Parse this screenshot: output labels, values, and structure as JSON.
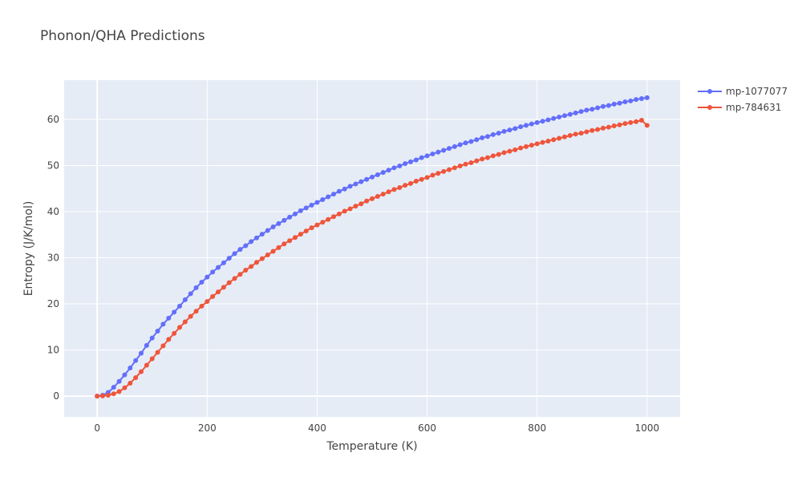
{
  "chart_data": {
    "type": "line",
    "title": "Phonon/QHA Predictions",
    "xlabel": "Temperature (K)",
    "ylabel": "Entropy (J/K/mol)",
    "xlim": [
      -60,
      1060
    ],
    "ylim": [
      -4.5,
      68.5
    ],
    "xticks": [
      0,
      200,
      400,
      600,
      800,
      1000
    ],
    "yticks": [
      0,
      10,
      20,
      30,
      40,
      50,
      60
    ],
    "grid": true,
    "legend_position": "top-right",
    "plot_background": "#E5ECF6",
    "series": [
      {
        "name": "mp-1077077",
        "color": "#636EFA",
        "x": [
          0,
          10,
          20,
          30,
          40,
          50,
          60,
          70,
          80,
          90,
          100,
          110,
          120,
          130,
          140,
          150,
          160,
          170,
          180,
          190,
          200,
          210,
          220,
          230,
          240,
          250,
          260,
          270,
          280,
          290,
          300,
          310,
          320,
          330,
          340,
          350,
          360,
          370,
          380,
          390,
          400,
          410,
          420,
          430,
          440,
          450,
          460,
          470,
          480,
          490,
          500,
          510,
          520,
          530,
          540,
          550,
          560,
          570,
          580,
          590,
          600,
          610,
          620,
          630,
          640,
          650,
          660,
          670,
          680,
          690,
          700,
          710,
          720,
          730,
          740,
          750,
          760,
          770,
          780,
          790,
          800,
          810,
          820,
          830,
          840,
          850,
          860,
          870,
          880,
          890,
          900,
          910,
          920,
          930,
          940,
          950,
          960,
          970,
          980,
          990,
          1000
        ],
        "y": [
          0,
          0.2,
          0.8,
          1.9,
          3.2,
          4.6,
          6.1,
          7.7,
          9.3,
          11.0,
          12.6,
          14.1,
          15.6,
          16.9,
          18.2,
          19.5,
          20.9,
          22.2,
          23.5,
          24.7,
          25.8,
          26.9,
          27.9,
          28.9,
          29.9,
          30.9,
          31.8,
          32.6,
          33.5,
          34.3,
          35.1,
          35.9,
          36.7,
          37.4,
          38.1,
          38.8,
          39.5,
          40.2,
          40.8,
          41.4,
          42.0,
          42.6,
          43.2,
          43.8,
          44.4,
          44.9,
          45.5,
          46.0,
          46.5,
          47.0,
          47.5,
          48.0,
          48.5,
          49.0,
          49.5,
          49.9,
          50.4,
          50.8,
          51.2,
          51.7,
          52.1,
          52.5,
          52.9,
          53.3,
          53.7,
          54.1,
          54.5,
          54.9,
          55.2,
          55.6,
          56.0,
          56.3,
          56.7,
          57.0,
          57.4,
          57.7,
          58.0,
          58.4,
          58.7,
          59.0,
          59.3,
          59.6,
          59.9,
          60.2,
          60.5,
          60.8,
          61.1,
          61.4,
          61.7,
          62.0,
          62.2,
          62.5,
          62.8,
          63.0,
          63.3,
          63.5,
          63.8,
          64.0,
          64.3,
          64.5,
          64.7
        ]
      },
      {
        "name": "mp-784631",
        "color": "#EF553B",
        "x": [
          0,
          10,
          20,
          30,
          40,
          50,
          60,
          70,
          80,
          90,
          100,
          110,
          120,
          130,
          140,
          150,
          160,
          170,
          180,
          190,
          200,
          210,
          220,
          230,
          240,
          250,
          260,
          270,
          280,
          290,
          300,
          310,
          320,
          330,
          340,
          350,
          360,
          370,
          380,
          390,
          400,
          410,
          420,
          430,
          440,
          450,
          460,
          470,
          480,
          490,
          500,
          510,
          520,
          530,
          540,
          550,
          560,
          570,
          580,
          590,
          600,
          610,
          620,
          630,
          640,
          650,
          660,
          670,
          680,
          690,
          700,
          710,
          720,
          730,
          740,
          750,
          760,
          770,
          780,
          790,
          800,
          810,
          820,
          830,
          840,
          850,
          860,
          870,
          880,
          890,
          900,
          910,
          920,
          930,
          940,
          950,
          960,
          970,
          980,
          990,
          1000
        ],
        "y": [
          0,
          0.05,
          0.2,
          0.5,
          1.0,
          1.8,
          2.8,
          4.0,
          5.3,
          6.7,
          8.1,
          9.5,
          10.9,
          12.3,
          13.6,
          14.9,
          16.1,
          17.3,
          18.4,
          19.5,
          20.5,
          21.6,
          22.6,
          23.6,
          24.6,
          25.5,
          26.4,
          27.3,
          28.1,
          29.0,
          29.8,
          30.6,
          31.4,
          32.2,
          33.0,
          33.7,
          34.4,
          35.1,
          35.8,
          36.5,
          37.1,
          37.7,
          38.3,
          38.9,
          39.5,
          40.1,
          40.6,
          41.2,
          41.7,
          42.3,
          42.8,
          43.3,
          43.8,
          44.3,
          44.8,
          45.2,
          45.7,
          46.1,
          46.6,
          47.0,
          47.4,
          47.9,
          48.3,
          48.7,
          49.1,
          49.5,
          49.9,
          50.3,
          50.6,
          51.0,
          51.4,
          51.7,
          52.1,
          52.4,
          52.8,
          53.1,
          53.4,
          53.8,
          54.1,
          54.4,
          54.7,
          55.0,
          55.3,
          55.6,
          55.9,
          56.2,
          56.5,
          56.8,
          57.0,
          57.3,
          57.6,
          57.8,
          58.1,
          58.3,
          58.6,
          58.8,
          59.1,
          59.3,
          59.5,
          59.8,
          58.7
        ]
      }
    ]
  }
}
